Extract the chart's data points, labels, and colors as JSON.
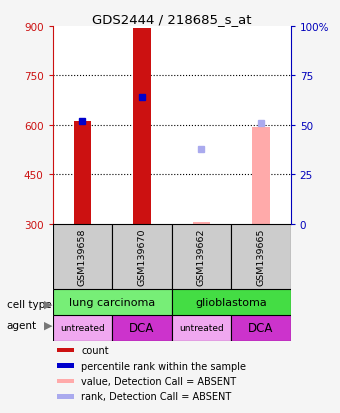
{
  "title": "GDS2444 / 218685_s_at",
  "samples": [
    "GSM139658",
    "GSM139670",
    "GSM139662",
    "GSM139665"
  ],
  "cell_types": [
    {
      "label": "lung carcinoma",
      "span": [
        0,
        2
      ],
      "color": "#77ee77"
    },
    {
      "label": "glioblastoma",
      "span": [
        2,
        4
      ],
      "color": "#44dd44"
    }
  ],
  "agents": [
    {
      "label": "untreated",
      "span": [
        0,
        1
      ],
      "color": "#f0a8f0"
    },
    {
      "label": "DCA",
      "span": [
        1,
        2
      ],
      "color": "#cc33cc"
    },
    {
      "label": "untreated",
      "span": [
        2,
        3
      ],
      "color": "#f0a8f0"
    },
    {
      "label": "DCA",
      "span": [
        3,
        4
      ],
      "color": "#cc33cc"
    }
  ],
  "ylim_left": [
    300,
    900
  ],
  "ylim_right": [
    0,
    100
  ],
  "yticks_left": [
    300,
    450,
    600,
    750,
    900
  ],
  "yticks_right": [
    0,
    25,
    50,
    75,
    100
  ],
  "yticklabels_right": [
    "0",
    "25",
    "50",
    "75",
    "100%"
  ],
  "bars_present": [
    {
      "sample_idx": 0,
      "value": 612,
      "rank": 52,
      "bar_color": "#cc1111",
      "marker_color": "#0000cc"
    },
    {
      "sample_idx": 1,
      "value": 893,
      "rank": 64,
      "bar_color": "#cc1111",
      "marker_color": "#0000cc"
    }
  ],
  "bars_absent": [
    {
      "sample_idx": 2,
      "value": 307,
      "rank": 38,
      "bar_color": "#ffaaaa",
      "marker_color": "#aaaaee"
    },
    {
      "sample_idx": 3,
      "value": 595,
      "rank": 51,
      "bar_color": "#ffaaaa",
      "marker_color": "#aaaaee"
    }
  ],
  "bar_width": 0.3,
  "ybase": 300,
  "legend_items": [
    {
      "label": "count",
      "color": "#cc1111"
    },
    {
      "label": "percentile rank within the sample",
      "color": "#0000cc"
    },
    {
      "label": "value, Detection Call = ABSENT",
      "color": "#ffaaaa"
    },
    {
      "label": "rank, Detection Call = ABSENT",
      "color": "#aaaaee"
    }
  ],
  "ax_bg": "#ffffff",
  "label_color_left": "#cc1111",
  "label_color_right": "#0000bb",
  "sample_box_color": "#cccccc",
  "grid_color": "#000000"
}
